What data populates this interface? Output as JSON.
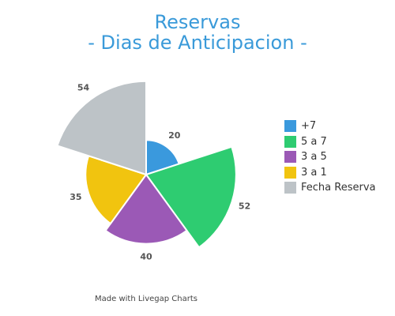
{
  "title_lines": [
    "Reservas",
    "- Dias de Anticipacion -"
  ],
  "credit": "Made with Livegap Charts",
  "chart_data": {
    "type": "polarArea",
    "title": "Reservas - Dias de Anticipacion -",
    "categories": [
      "+7",
      "5 a 7",
      "3 a 5",
      "3 a 1",
      "Fecha Reserva"
    ],
    "values": [
      20,
      52,
      40,
      35,
      54
    ],
    "colors": [
      "#3a99dd",
      "#2ecc71",
      "#9b59b6",
      "#f1c40f",
      "#bdc3c7"
    ],
    "start_angle_deg": -90,
    "sector_deg": 72,
    "legend_position": "right"
  }
}
